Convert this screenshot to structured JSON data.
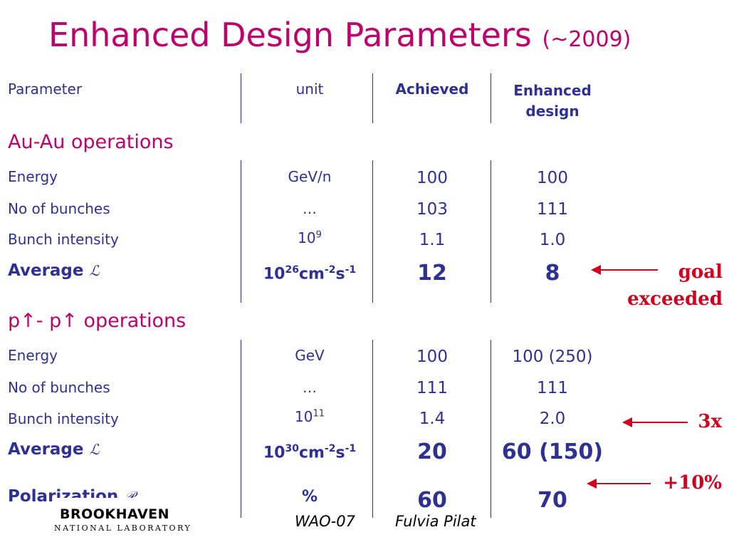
{
  "title": {
    "main": "Enhanced Design Parameters",
    "suffix": "(~2009)"
  },
  "header": {
    "parameter": "Parameter",
    "unit": "unit",
    "achieved": "Achieved",
    "enhanced_line1": "Enhanced",
    "enhanced_line2": "design"
  },
  "au": {
    "title": "Au-Au operations",
    "rows": [
      {
        "label": "Energy",
        "unit": "GeV/n",
        "achieved": "100",
        "enhanced": "100"
      },
      {
        "label": "No of bunches",
        "unit": "…",
        "achieved": "103",
        "enhanced": "111"
      },
      {
        "label": "Bunch intensity",
        "unit_base": "10",
        "unit_exp": "9",
        "achieved": "1.1",
        "enhanced": "1.0"
      },
      {
        "label": "Average",
        "symbol": "ℒ",
        "unit_base": "10",
        "unit_exp": "26",
        "unit_cm": "cm",
        "unit_cm_exp": "-2",
        "unit_s": "s",
        "unit_s_exp": "-1",
        "achieved": "12",
        "enhanced": "8"
      }
    ]
  },
  "pp": {
    "title_p1": "p",
    "arrow": "↑",
    "title_mid": "- p",
    "title_end": " operations",
    "rows": [
      {
        "label": "Energy",
        "unit": "GeV",
        "achieved": "100",
        "enhanced": "100 (250)"
      },
      {
        "label": "No of bunches",
        "unit": "…",
        "achieved": "111",
        "enhanced": "111"
      },
      {
        "label": "Bunch intensity",
        "unit_base": "10",
        "unit_exp": "11",
        "achieved": "1.4",
        "enhanced": "2.0"
      },
      {
        "label": "Average",
        "symbol": "ℒ",
        "unit_base": "10",
        "unit_exp": "30",
        "unit_cm": "cm",
        "unit_cm_exp": "-2",
        "unit_s": "s",
        "unit_s_exp": "-1",
        "achieved": "20",
        "enhanced": "60 (150)"
      },
      {
        "label": "Polarization",
        "symbol": "𝒫",
        "unit": "%",
        "achieved": "60",
        "enhanced": "70"
      }
    ]
  },
  "notes": {
    "goal_line1": "goal",
    "goal_line2": "exceeded",
    "three_x": "3x",
    "plus_ten": "+10%"
  },
  "footer": {
    "event": "WAO-07",
    "author": "Fulvia Pilat"
  },
  "logo": {
    "name": "BROOKHAVEN",
    "subtitle": "NATIONAL LABORATORY"
  },
  "colors": {
    "title": "#c0006b",
    "text": "#2e3192",
    "accent": "#d2001e"
  }
}
